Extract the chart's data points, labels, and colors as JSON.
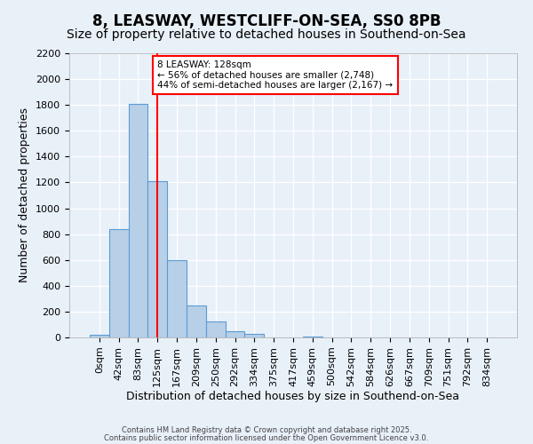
{
  "title": "8, LEASWAY, WESTCLIFF-ON-SEA, SS0 8PB",
  "subtitle": "Size of property relative to detached houses in Southend-on-Sea",
  "xlabel": "Distribution of detached houses by size in Southend-on-Sea",
  "ylabel": "Number of detached properties",
  "bin_labels": [
    "0sqm",
    "42sqm",
    "83sqm",
    "125sqm",
    "167sqm",
    "209sqm",
    "250sqm",
    "292sqm",
    "334sqm",
    "375sqm",
    "417sqm",
    "459sqm",
    "500sqm",
    "542sqm",
    "584sqm",
    "626sqm",
    "667sqm",
    "709sqm",
    "751sqm",
    "792sqm",
    "834sqm"
  ],
  "bar_values": [
    20,
    840,
    1810,
    1210,
    600,
    250,
    125,
    50,
    25,
    0,
    0,
    8,
    0,
    0,
    0,
    0,
    0,
    0,
    0,
    0,
    0
  ],
  "bar_color": "#b8cfe8",
  "bar_edge_color": "#5b9bd5",
  "vline_x": 3,
  "vline_color": "red",
  "ylim": [
    0,
    2200
  ],
  "yticks": [
    0,
    200,
    400,
    600,
    800,
    1000,
    1200,
    1400,
    1600,
    1800,
    2000,
    2200
  ],
  "annotation_title": "8 LEASWAY: 128sqm",
  "annotation_line2": "← 56% of detached houses are smaller (2,748)",
  "annotation_line3": "44% of semi-detached houses are larger (2,167) →",
  "annotation_box_color": "white",
  "annotation_box_edge": "red",
  "footer1": "Contains HM Land Registry data © Crown copyright and database right 2025.",
  "footer2": "Contains public sector information licensed under the Open Government Licence v3.0.",
  "background_color": "#e8f0f8",
  "grid_color": "white",
  "title_fontsize": 12,
  "subtitle_fontsize": 10,
  "axis_label_fontsize": 9,
  "tick_fontsize": 8
}
